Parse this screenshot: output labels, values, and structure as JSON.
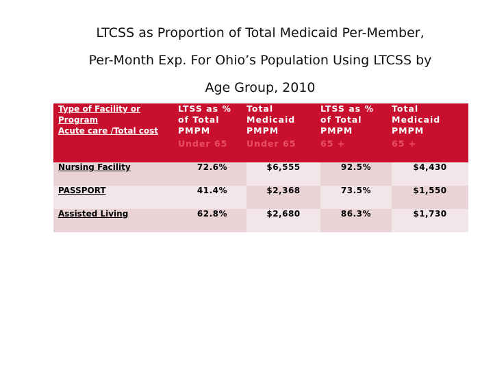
{
  "title": {
    "line1": "LTCSS as Proportion of Total Medicaid Per-Member,",
    "line2": "Per-Month Exp. For Ohio’s Population Using LTCSS by",
    "line3": "Age Group, 2010"
  },
  "table": {
    "headers": [
      {
        "lines": [
          "Type of Facility or",
          "Program",
          "Acute care /Total cost"
        ],
        "sub": ""
      },
      {
        "lines": [
          "LTSS as %",
          "of Total",
          "PMPM"
        ],
        "sub": "Under 65"
      },
      {
        "lines": [
          "Total",
          "Medicaid",
          "PMPM"
        ],
        "sub": "Under 65"
      },
      {
        "lines": [
          "LTSS as %",
          "of Total",
          "PMPM"
        ],
        "sub": "65 +"
      },
      {
        "lines": [
          "Total",
          "Medicaid",
          "PMPM"
        ],
        "sub": "65 +"
      }
    ],
    "rows": [
      {
        "name": "Nursing Facility",
        "ltss_u65": "72.6%",
        "total_u65": "$6,555",
        "ltss_65": "92.5%",
        "total_65": "$4,430"
      },
      {
        "name": "PASSPORT",
        "ltss_u65": "41.4%",
        "total_u65": "$2,368",
        "ltss_65": "73.5%",
        "total_65": "$1,550"
      },
      {
        "name": "Assisted Living",
        "ltss_u65": "62.8%",
        "total_u65": "$2,680",
        "ltss_65": "86.3%",
        "total_65": "$1,730"
      }
    ]
  }
}
